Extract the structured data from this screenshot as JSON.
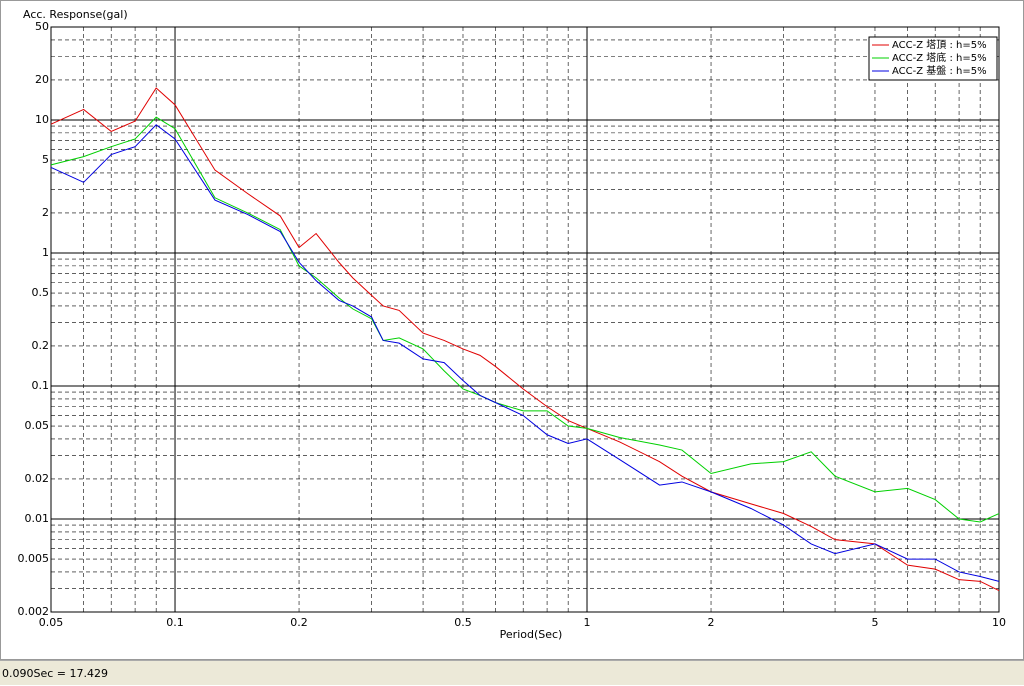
{
  "chart_data": {
    "type": "line",
    "y_label": "Acc. Response(gal)",
    "x_label": "Period(Sec)",
    "xscale": "log",
    "yscale": "log",
    "grid": true,
    "legend": "top-right",
    "x": [
      0.05,
      0.06,
      0.07,
      0.08,
      0.09,
      0.1,
      0.125,
      0.15,
      0.18,
      0.2,
      0.22,
      0.25,
      0.27,
      0.3,
      0.32,
      0.35,
      0.4,
      0.45,
      0.5,
      0.55,
      0.6,
      0.7,
      0.8,
      0.9,
      1,
      1.2,
      1.5,
      1.7,
      2,
      2.5,
      3,
      3.5,
      4,
      5,
      6,
      7,
      8,
      9,
      10
    ],
    "series": [
      {
        "name": "ACC-Z 塔頂 : h=5%",
        "color": "#e00000",
        "values": [
          9.3,
          12,
          8.2,
          9.8,
          17.4,
          13,
          4.2,
          2.8,
          1.9,
          1.1,
          1.4,
          0.85,
          0.65,
          0.48,
          0.4,
          0.37,
          0.25,
          0.22,
          0.19,
          0.17,
          0.14,
          0.095,
          0.07,
          0.055,
          0.048,
          0.038,
          0.027,
          0.021,
          0.016,
          0.013,
          0.011,
          0.0088,
          0.007,
          0.0065,
          0.0045,
          0.0042,
          0.0035,
          0.0034,
          0.0029
        ]
      },
      {
        "name": "ACC-Z 塔底 : h=5%",
        "color": "#00d000",
        "values": [
          4.6,
          5.3,
          6.3,
          7.2,
          10.5,
          8.6,
          2.6,
          2.0,
          1.5,
          0.8,
          0.65,
          0.46,
          0.38,
          0.32,
          0.22,
          0.23,
          0.19,
          0.13,
          0.095,
          0.085,
          0.075,
          0.065,
          0.065,
          0.05,
          0.048,
          0.041,
          0.036,
          0.033,
          0.022,
          0.026,
          0.027,
          0.032,
          0.021,
          0.016,
          0.017,
          0.014,
          0.01,
          0.0095,
          0.011
        ]
      },
      {
        "name": "ACC-Z 基盤 : h=5%",
        "color": "#0000e0",
        "values": [
          4.4,
          3.4,
          5.5,
          6.3,
          9.2,
          7.2,
          2.5,
          1.95,
          1.45,
          0.85,
          0.62,
          0.44,
          0.4,
          0.33,
          0.22,
          0.21,
          0.16,
          0.15,
          0.11,
          0.085,
          0.075,
          0.06,
          0.043,
          0.037,
          0.04,
          0.028,
          0.018,
          0.019,
          0.016,
          0.012,
          0.009,
          0.0065,
          0.0055,
          0.0065,
          0.005,
          0.005,
          0.004,
          0.0037,
          0.0034
        ]
      }
    ],
    "xlim": [
      0.05,
      10
    ],
    "xticks": [
      0.05,
      0.1,
      0.2,
      0.5,
      1,
      2,
      5,
      10
    ],
    "ylim": [
      0.002,
      50
    ],
    "yticks": [
      0.002,
      0.005,
      0.01,
      0.02,
      0.05,
      0.1,
      0.2,
      0.5,
      1,
      2,
      5,
      10,
      20,
      50
    ]
  },
  "status_bar": "0.090Sec = 17.429"
}
